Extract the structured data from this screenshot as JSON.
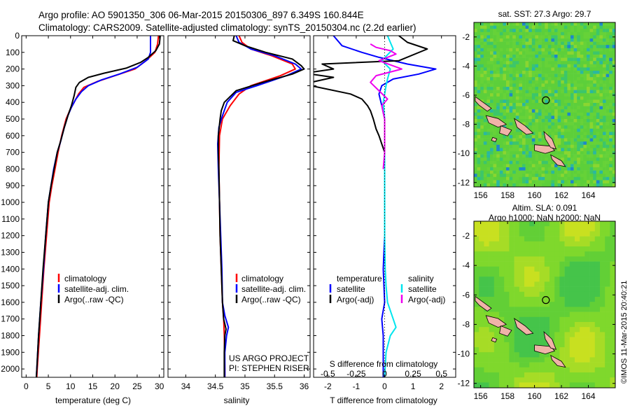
{
  "header": {
    "line1": "Argo profile: AO 5901350_306 06-Mar-2015 20150306_897 6.349S 160.844E",
    "line2": "Climatology: CARS2009. Satellite-adjusted climatology: synTS_20150304.nc (2.2d earlier)"
  },
  "watermark": "©IMOS 11-Mar-2015 20:40:21",
  "colors": {
    "climatology": "#ff0000",
    "satellite": "#0000ff",
    "argo": "#000000",
    "salinity_satellite": "#00e5ee",
    "salinity_argo": "#ee00ee",
    "land": "#f0b3a8"
  },
  "chart_data": [
    {
      "id": "temperature",
      "type": "line",
      "xlabel": "temperature (deg C)",
      "xlim": [
        -1,
        31
      ],
      "ylim": [
        2050,
        0
      ],
      "xticks": [
        0,
        5,
        10,
        15,
        20,
        25,
        30
      ],
      "yticks": [
        0,
        100,
        200,
        300,
        400,
        500,
        600,
        700,
        800,
        900,
        1000,
        1100,
        1200,
        1300,
        1400,
        1500,
        1600,
        1700,
        1800,
        1900,
        2000
      ],
      "legend": [
        "climatology",
        "satellite-adj. clim.",
        "Argo(..raw -QC)"
      ],
      "series": [
        {
          "name": "climatology",
          "color": "#ff0000",
          "points": [
            [
              29.8,
              0
            ],
            [
              29.6,
              50
            ],
            [
              29.0,
              100
            ],
            [
              27.0,
              150
            ],
            [
              24.5,
              200
            ],
            [
              20,
              240
            ],
            [
              16,
              275
            ],
            [
              13,
              310
            ],
            [
              11.8,
              350
            ],
            [
              10.8,
              400
            ],
            [
              9.8,
              450
            ],
            [
              9,
              500
            ],
            [
              8,
              600
            ],
            [
              7.2,
              700
            ],
            [
              6.5,
              800
            ],
            [
              5.8,
              900
            ],
            [
              5.2,
              1000
            ],
            [
              4.6,
              1200
            ],
            [
              4.0,
              1400
            ],
            [
              3.5,
              1600
            ],
            [
              3.0,
              1800
            ],
            [
              2.5,
              2000
            ],
            [
              2.4,
              2050
            ]
          ]
        },
        {
          "name": "satellite-adj. clim.",
          "color": "#0000ff",
          "points": [
            [
              28.0,
              0
            ],
            [
              28.0,
              100
            ],
            [
              27.5,
              140
            ],
            [
              25.0,
              190
            ],
            [
              21,
              230
            ],
            [
              17,
              265
            ],
            [
              14,
              300
            ],
            [
              12.5,
              335
            ],
            [
              11.2,
              380
            ],
            [
              10.2,
              430
            ],
            [
              9.4,
              480
            ],
            [
              8.6,
              550
            ],
            [
              7.6,
              650
            ],
            [
              7.0,
              700
            ],
            [
              6.2,
              800
            ],
            [
              5.6,
              900
            ],
            [
              5.0,
              1000
            ],
            [
              4.4,
              1200
            ],
            [
              3.9,
              1400
            ],
            [
              3.3,
              1600
            ],
            [
              2.8,
              1800
            ],
            [
              2.4,
              2000
            ],
            [
              2.3,
              2050
            ]
          ]
        },
        {
          "name": "Argo(..raw -QC)",
          "color": "#000000",
          "points": [
            [
              30.2,
              0
            ],
            [
              30.0,
              50
            ],
            [
              29.2,
              90
            ],
            [
              27.5,
              130
            ],
            [
              25.8,
              160
            ],
            [
              22.5,
              195
            ],
            [
              17.5,
              225
            ],
            [
              14,
              250
            ],
            [
              12,
              280
            ],
            [
              11.2,
              310
            ],
            [
              10.8,
              360
            ],
            [
              10.2,
              420
            ],
            [
              9.4,
              480
            ],
            [
              8.6,
              550
            ],
            [
              7.8,
              630
            ],
            [
              7.0,
              700
            ],
            [
              6.3,
              800
            ],
            [
              5.6,
              900
            ],
            [
              5.0,
              1000
            ],
            [
              4.4,
              1200
            ],
            [
              3.8,
              1400
            ],
            [
              3.3,
              1600
            ],
            [
              2.8,
              1800
            ],
            [
              2.4,
              2000
            ],
            [
              2.3,
              2050
            ]
          ]
        }
      ]
    },
    {
      "id": "salinity",
      "type": "line",
      "xlabel": "salinity",
      "xlim": [
        33.7,
        36.1
      ],
      "ylim": [
        2050,
        0
      ],
      "xticks": [
        34,
        34.5,
        35,
        35.5,
        36
      ],
      "legend": [
        "climatology",
        "satellite-adj. clim.",
        "Argo(..raw -QC)"
      ],
      "annotations": [
        "US ARGO PROJECT",
        "PI: STEPHEN RISER"
      ],
      "series": [
        {
          "name": "climatology",
          "color": "#ff0000",
          "points": [
            [
              34.9,
              0
            ],
            [
              34.95,
              40
            ],
            [
              35.1,
              80
            ],
            [
              35.45,
              120
            ],
            [
              35.8,
              170
            ],
            [
              35.85,
              200
            ],
            [
              35.6,
              240
            ],
            [
              35.1,
              300
            ],
            [
              34.9,
              350
            ],
            [
              34.75,
              420
            ],
            [
              34.62,
              500
            ],
            [
              34.57,
              600
            ],
            [
              34.56,
              800
            ],
            [
              34.57,
              1000
            ],
            [
              34.58,
              1200
            ],
            [
              34.6,
              1400
            ],
            [
              34.62,
              1600
            ],
            [
              34.64,
              1700
            ],
            [
              34.65,
              1800
            ],
            [
              34.66,
              2000
            ],
            [
              34.66,
              2050
            ]
          ]
        },
        {
          "name": "satellite-adj. clim.",
          "color": "#0000ff",
          "points": [
            [
              34.85,
              0
            ],
            [
              34.9,
              40
            ],
            [
              35.1,
              80
            ],
            [
              35.5,
              120
            ],
            [
              35.85,
              170
            ],
            [
              35.95,
              200
            ],
            [
              35.7,
              240
            ],
            [
              35.2,
              300
            ],
            [
              34.85,
              340
            ],
            [
              34.7,
              400
            ],
            [
              34.62,
              480
            ],
            [
              34.56,
              550
            ],
            [
              34.54,
              650
            ],
            [
              34.55,
              800
            ],
            [
              34.57,
              1000
            ],
            [
              34.59,
              1200
            ],
            [
              34.61,
              1400
            ],
            [
              34.62,
              1600
            ],
            [
              34.66,
              1680
            ],
            [
              34.72,
              1750
            ],
            [
              34.69,
              1800
            ],
            [
              34.66,
              1900
            ],
            [
              34.66,
              2050
            ]
          ]
        },
        {
          "name": "Argo(..raw -QC)",
          "color": "#000000",
          "points": [
            [
              34.82,
              0
            ],
            [
              34.8,
              30
            ],
            [
              35.0,
              60
            ],
            [
              35.35,
              100
            ],
            [
              35.8,
              140
            ],
            [
              35.95,
              180
            ],
            [
              36.0,
              200
            ],
            [
              35.8,
              230
            ],
            [
              35.3,
              280
            ],
            [
              34.85,
              330
            ],
            [
              34.65,
              400
            ],
            [
              34.6,
              450
            ],
            [
              34.58,
              500
            ],
            [
              34.55,
              600
            ],
            [
              34.55,
              700
            ],
            [
              34.56,
              800
            ],
            [
              34.57,
              1000
            ],
            [
              34.58,
              1200
            ],
            [
              34.6,
              1400
            ],
            [
              34.62,
              1600
            ],
            [
              34.64,
              1700
            ],
            [
              34.68,
              1760
            ],
            [
              34.66,
              1800
            ],
            [
              34.65,
              1900
            ],
            [
              34.65,
              2050
            ]
          ]
        }
      ]
    },
    {
      "id": "difference",
      "type": "line",
      "xlabel": "T difference from climatology",
      "xlim": [
        -2.5,
        2.5
      ],
      "xticks": [
        -2,
        -1,
        0,
        1,
        2
      ],
      "x2label": "S difference from climatology",
      "x2ticks": [
        "-0.5",
        "-0.25",
        "0",
        "0.25",
        "0.5"
      ],
      "ylim": [
        2050,
        0
      ],
      "legend_temperature": {
        "title": "temperature",
        "items": [
          "satellite",
          "Argo(-adj)"
        ]
      },
      "legend_salinity": {
        "title": "salinity",
        "items": [
          "satellite",
          "Argo(-adj)"
        ]
      },
      "series": [
        {
          "name": "temperature satellite",
          "color": "#0000ff",
          "points": [
            [
              -1.8,
              0
            ],
            [
              -1.5,
              60
            ],
            [
              -0.8,
              100
            ],
            [
              -0.2,
              130
            ],
            [
              0.8,
              170
            ],
            [
              1.8,
              200
            ],
            [
              1.2,
              230
            ],
            [
              0.3,
              260
            ],
            [
              -0.1,
              300
            ],
            [
              -0.2,
              350
            ],
            [
              -0.1,
              420
            ],
            [
              0,
              500
            ],
            [
              0,
              800
            ],
            [
              0,
              1200
            ],
            [
              -0.05,
              1400
            ],
            [
              0,
              1600
            ],
            [
              -0.1,
              1700
            ],
            [
              -0.05,
              1800
            ],
            [
              -0.05,
              2050
            ]
          ]
        },
        {
          "name": "temperature Argo(-adj)",
          "color": "#000000",
          "points": [
            [
              0.5,
              0
            ],
            [
              0.8,
              40
            ],
            [
              1.5,
              80
            ],
            [
              0.5,
              150
            ],
            [
              -2.2,
              170
            ],
            [
              -1.8,
              200
            ],
            [
              -2.6,
              220
            ],
            [
              -2.6,
              230
            ],
            [
              -1.8,
              250
            ],
            [
              -2.6,
              280
            ],
            [
              -2.6,
              300
            ],
            [
              -1.2,
              350
            ],
            [
              -0.8,
              380
            ],
            [
              -0.6,
              420
            ],
            [
              -0.5,
              450
            ],
            [
              -0.4,
              500
            ],
            [
              -0.3,
              560
            ],
            [
              -0.2,
              600
            ],
            [
              -0.1,
              650
            ],
            [
              0,
              700
            ]
          ]
        },
        {
          "name": "salinity satellite",
          "color": "#00e5ee",
          "points": [
            [
              0.1,
              0
            ],
            [
              0.2,
              40
            ],
            [
              0.3,
              80
            ],
            [
              -0.1,
              150
            ],
            [
              0.2,
              200
            ],
            [
              0.1,
              260
            ],
            [
              0.05,
              300
            ],
            [
              -0.05,
              400
            ],
            [
              0,
              500
            ],
            [
              0,
              800
            ],
            [
              0,
              1200
            ],
            [
              0.02,
              1400
            ],
            [
              0.05,
              1500
            ],
            [
              0.1,
              1600
            ],
            [
              0.3,
              1700
            ],
            [
              0.4,
              1750
            ],
            [
              0.2,
              1800
            ],
            [
              0.05,
              1900
            ],
            [
              0,
              2050
            ]
          ]
        },
        {
          "name": "salinity Argo(-adj)",
          "color": "#ee00ee",
          "points": [
            [
              -0.5,
              50
            ],
            [
              -0.3,
              70
            ],
            [
              0.2,
              90
            ],
            [
              0.4,
              110
            ],
            [
              -0.2,
              150
            ],
            [
              0.6,
              200
            ],
            [
              -0.3,
              240
            ],
            [
              -0.5,
              280
            ],
            [
              -0.2,
              330
            ],
            [
              0.1,
              380
            ],
            [
              -0.1,
              420
            ],
            [
              0,
              500
            ],
            [
              0,
              700
            ],
            [
              -0.05,
              800
            ]
          ]
        }
      ]
    },
    {
      "id": "sst_map",
      "type": "heatmap",
      "title": "sat. SST: 27.3 Argo: 29.7",
      "xlim": [
        155.5,
        166
      ],
      "ylim": [
        -12.3,
        -1
      ],
      "xticks": [
        156,
        158,
        160,
        162,
        164
      ],
      "yticks": [
        -2,
        -4,
        -6,
        -8,
        -10,
        -12
      ],
      "argo_position": [
        160.844,
        -6.349
      ]
    },
    {
      "id": "sla_map",
      "type": "heatmap",
      "title": "Altim. SLA: 0.091",
      "subtitle": "Argo h1000: NaN h2000: NaN",
      "xlim": [
        155.5,
        166
      ],
      "ylim": [
        -12.3,
        -1
      ],
      "xticks": [
        156,
        158,
        160,
        162,
        164
      ],
      "yticks": [
        -2,
        -4,
        -6,
        -8,
        -10,
        -12
      ],
      "argo_position": [
        160.844,
        -6.349
      ]
    }
  ]
}
